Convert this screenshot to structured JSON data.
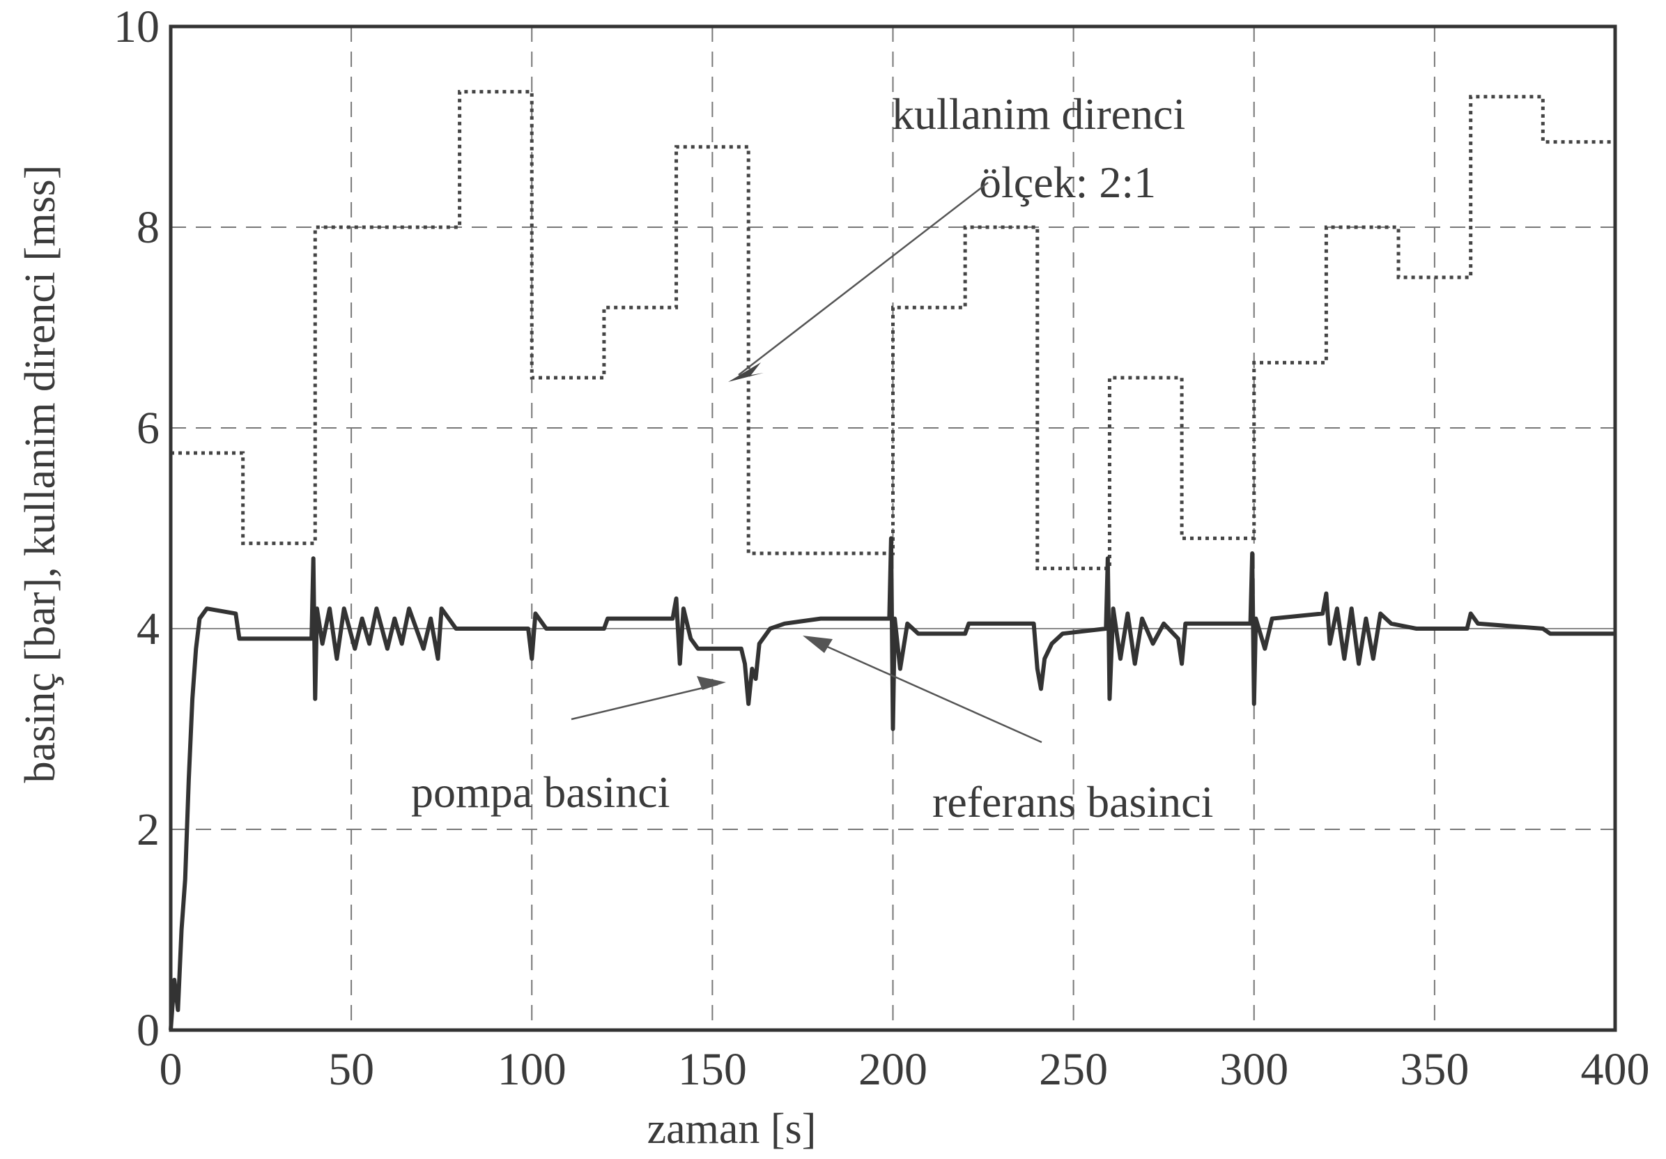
{
  "chart_data": {
    "type": "line",
    "xlabel": "zaman [s]",
    "ylabel": "basinç [bar], kullanim direnci [mss]",
    "xlim": [
      0,
      400
    ],
    "ylim": [
      0,
      10
    ],
    "xticks": [
      "0",
      "50",
      "100",
      "150",
      "200",
      "250",
      "300",
      "350",
      "400"
    ],
    "yticks": [
      "0",
      "2",
      "4",
      "6",
      "8",
      "10"
    ],
    "grid": true,
    "annotations": {
      "resistance_label_line1": "kullanim direnci",
      "resistance_label_line2": "ölçek: 2:1",
      "pump_label": "pompa basinci",
      "reference_label": "referans basinci"
    },
    "series": [
      {
        "name": "kullanim direnci",
        "style": "dotted",
        "steps": [
          [
            0,
            5.75
          ],
          [
            20,
            4.85
          ],
          [
            40,
            8.0
          ],
          [
            80,
            9.35
          ],
          [
            100,
            6.5
          ],
          [
            120,
            7.2
          ],
          [
            140,
            8.8
          ],
          [
            160,
            4.75
          ],
          [
            200,
            7.2
          ],
          [
            220,
            8.0
          ],
          [
            240,
            4.6
          ],
          [
            260,
            6.5
          ],
          [
            280,
            4.9
          ],
          [
            300,
            6.65
          ],
          [
            320,
            8.0
          ],
          [
            340,
            7.5
          ],
          [
            360,
            9.3
          ],
          [
            380,
            8.85
          ],
          [
            400,
            8.85
          ]
        ]
      },
      {
        "name": "referans basinci",
        "style": "thin",
        "points": [
          [
            0,
            4.0
          ],
          [
            400,
            4.0
          ]
        ]
      },
      {
        "name": "pompa basinci",
        "style": "solid",
        "points": [
          [
            0,
            0.0
          ],
          [
            1,
            0.5
          ],
          [
            2,
            0.2
          ],
          [
            3,
            1.0
          ],
          [
            4,
            1.5
          ],
          [
            5,
            2.5
          ],
          [
            6,
            3.3
          ],
          [
            7,
            3.8
          ],
          [
            8,
            4.1
          ],
          [
            10,
            4.2
          ],
          [
            18,
            4.15
          ],
          [
            19,
            3.9
          ],
          [
            39,
            3.9
          ],
          [
            39.5,
            4.7
          ],
          [
            40,
            3.3
          ],
          [
            40.5,
            4.2
          ],
          [
            42,
            3.85
          ],
          [
            44,
            4.2
          ],
          [
            46,
            3.7
          ],
          [
            48,
            4.2
          ],
          [
            51,
            3.8
          ],
          [
            53,
            4.1
          ],
          [
            55,
            3.85
          ],
          [
            57,
            4.2
          ],
          [
            60,
            3.8
          ],
          [
            62,
            4.1
          ],
          [
            64,
            3.85
          ],
          [
            66,
            4.2
          ],
          [
            70,
            3.8
          ],
          [
            72,
            4.1
          ],
          [
            74,
            3.7
          ],
          [
            75,
            4.2
          ],
          [
            79,
            4.0
          ],
          [
            99,
            4.0
          ],
          [
            100,
            3.7
          ],
          [
            101,
            4.15
          ],
          [
            104,
            4.0
          ],
          [
            120,
            4.0
          ],
          [
            121,
            4.1
          ],
          [
            139,
            4.1
          ],
          [
            140,
            4.3
          ],
          [
            141,
            3.65
          ],
          [
            142,
            4.2
          ],
          [
            144,
            3.9
          ],
          [
            146,
            3.8
          ],
          [
            158,
            3.8
          ],
          [
            159,
            3.65
          ],
          [
            160,
            3.25
          ],
          [
            161,
            3.6
          ],
          [
            162,
            3.5
          ],
          [
            163,
            3.85
          ],
          [
            166,
            4.0
          ],
          [
            170,
            4.05
          ],
          [
            180,
            4.1
          ],
          [
            199,
            4.1
          ],
          [
            199.5,
            4.9
          ],
          [
            200,
            3.0
          ],
          [
            200.5,
            4.1
          ],
          [
            202,
            3.6
          ],
          [
            204,
            4.05
          ],
          [
            207,
            3.95
          ],
          [
            220,
            3.95
          ],
          [
            221,
            4.05
          ],
          [
            239,
            4.05
          ],
          [
            240,
            3.6
          ],
          [
            241,
            3.4
          ],
          [
            242,
            3.7
          ],
          [
            244,
            3.85
          ],
          [
            247,
            3.95
          ],
          [
            259,
            4.0
          ],
          [
            259.5,
            4.7
          ],
          [
            260,
            3.3
          ],
          [
            261,
            4.2
          ],
          [
            263,
            3.7
          ],
          [
            265,
            4.15
          ],
          [
            267,
            3.65
          ],
          [
            269,
            4.1
          ],
          [
            272,
            3.85
          ],
          [
            275,
            4.05
          ],
          [
            279,
            3.9
          ],
          [
            280,
            3.65
          ],
          [
            281,
            4.05
          ],
          [
            285,
            4.05
          ],
          [
            299,
            4.05
          ],
          [
            299.5,
            4.75
          ],
          [
            300,
            3.25
          ],
          [
            300.5,
            4.1
          ],
          [
            303,
            3.8
          ],
          [
            305,
            4.1
          ],
          [
            319,
            4.15
          ],
          [
            320,
            4.35
          ],
          [
            321,
            3.85
          ],
          [
            323,
            4.2
          ],
          [
            325,
            3.7
          ],
          [
            327,
            4.2
          ],
          [
            329,
            3.65
          ],
          [
            331,
            4.1
          ],
          [
            333,
            3.7
          ],
          [
            335,
            4.15
          ],
          [
            338,
            4.05
          ],
          [
            345,
            4.0
          ],
          [
            359,
            4.0
          ],
          [
            360,
            4.15
          ],
          [
            362,
            4.05
          ],
          [
            380,
            4.0
          ],
          [
            382,
            3.95
          ],
          [
            400,
            3.95
          ]
        ]
      }
    ]
  }
}
